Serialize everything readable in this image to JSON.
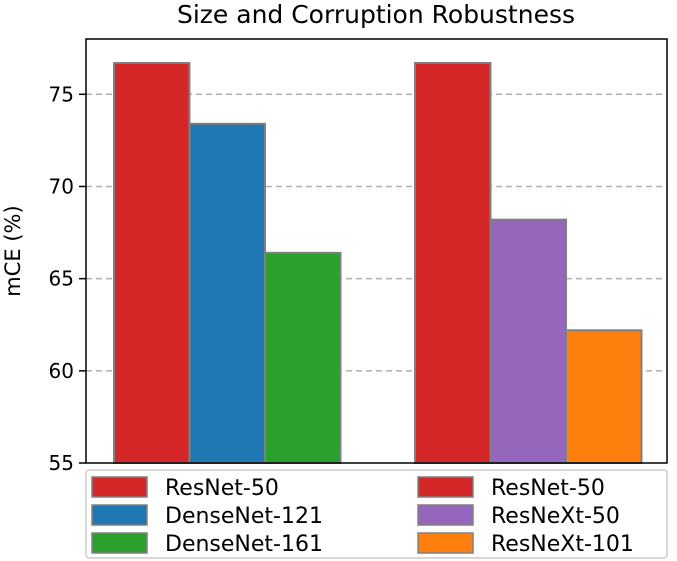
{
  "chart_data": {
    "type": "bar",
    "title": "Size and Corruption Robustness",
    "xlabel": "",
    "ylabel": "mCE (%)",
    "ylim": [
      55,
      78
    ],
    "yticks": [
      55,
      60,
      65,
      70,
      75
    ],
    "grid": "horizontal dashed",
    "legend_placement": "bottom",
    "groups": [
      {
        "series": [
          {
            "name": "ResNet-50",
            "value": 76.7,
            "color": "#d62728"
          },
          {
            "name": "DenseNet-121",
            "value": 73.4,
            "color": "#1f77b4"
          },
          {
            "name": "DenseNet-161",
            "value": 66.4,
            "color": "#2ca02c"
          }
        ]
      },
      {
        "series": [
          {
            "name": "ResNet-50",
            "value": 76.7,
            "color": "#d62728"
          },
          {
            "name": "ResNeXt-50",
            "value": 68.2,
            "color": "#9467bd"
          },
          {
            "name": "ResNeXt-101",
            "value": 62.2,
            "color": "#ff7f0e"
          }
        ]
      }
    ]
  }
}
